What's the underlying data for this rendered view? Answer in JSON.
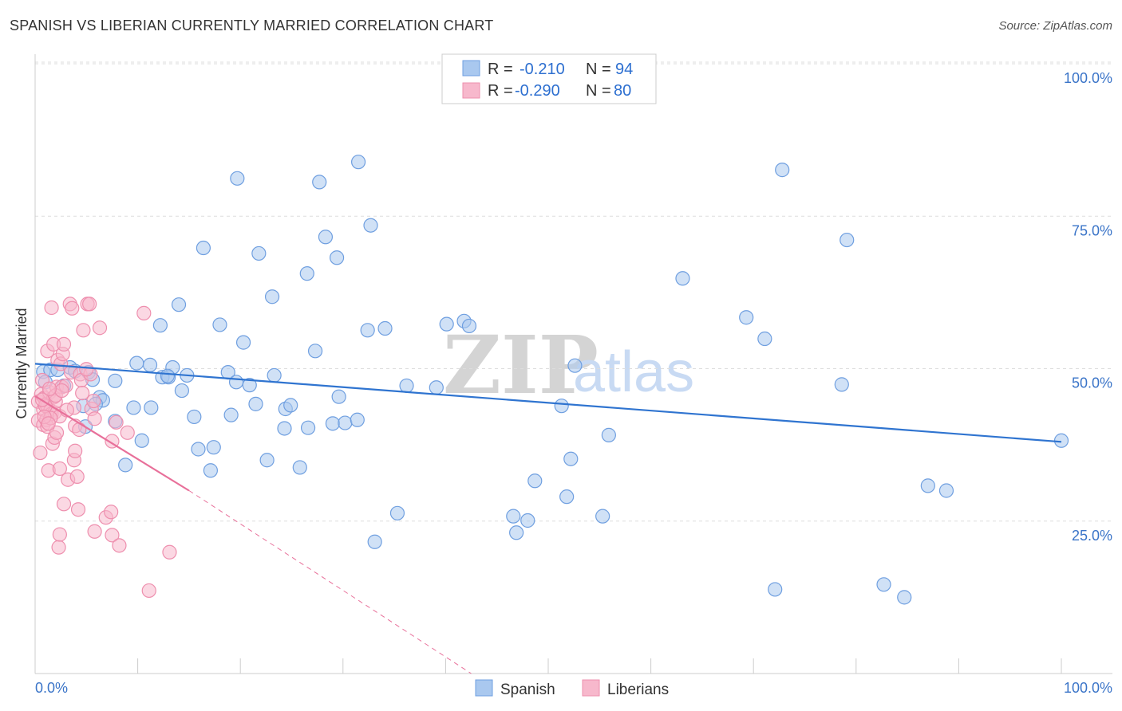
{
  "header": {
    "title": "SPANISH VS LIBERIAN CURRENTLY MARRIED CORRELATION CHART",
    "source": "Source: ZipAtlas.com"
  },
  "watermark": {
    "zip": "ZIP",
    "atlas": "atlas"
  },
  "colors": {
    "spanish_fill": "#a9c8ef",
    "spanish_stroke": "#6f9fe0",
    "spanish_line": "#2f74d0",
    "liberian_fill": "#f7b8cc",
    "liberian_stroke": "#ee8fae",
    "liberian_line": "#e8709a",
    "grid": "#dddddd",
    "tick_label": "#3a74c8"
  },
  "legend": {
    "rows": [
      {
        "r_label": "R = ",
        "r_value": "-0.210",
        "n_label": "N = ",
        "n_value": "94"
      },
      {
        "r_label": "R = ",
        "r_value": "-0.290",
        "n_label": "N = ",
        "n_value": "80"
      }
    ]
  },
  "chart_data": {
    "type": "scatter",
    "title": "SPANISH VS LIBERIAN CURRENTLY MARRIED CORRELATION CHART",
    "xlabel": "",
    "ylabel": "Currently Married",
    "xlim": [
      0,
      100
    ],
    "ylim": [
      0,
      100
    ],
    "x_tick_labels": [
      "0.0%",
      "100.0%"
    ],
    "y_ticks": [
      25,
      50,
      75,
      100
    ],
    "y_tick_labels": [
      "25.0%",
      "50.0%",
      "75.0%",
      "100.0%"
    ],
    "grid": true,
    "legend_position": "top-center",
    "series": [
      {
        "name": "Spanish",
        "r": -0.21,
        "n": 94,
        "trend": {
          "x": [
            0,
            100
          ],
          "y": [
            50.8,
            38.0
          ],
          "dashed_extension": false
        },
        "points": [
          [
            0.8,
            49.5
          ],
          [
            1.5,
            49.8
          ],
          [
            2.2,
            49.8
          ],
          [
            2.8,
            47.2
          ],
          [
            3.4,
            50.2
          ],
          [
            3.9,
            49.6
          ],
          [
            5.2,
            49.4
          ],
          [
            5.6,
            48.2
          ],
          [
            4.7,
            43.9
          ],
          [
            4.9,
            40.5
          ],
          [
            6.3,
            45.3
          ],
          [
            6.6,
            44.8
          ],
          [
            5.9,
            44.2
          ],
          [
            7.8,
            48.0
          ],
          [
            7.8,
            41.4
          ],
          [
            8.8,
            34.2
          ],
          [
            9.6,
            43.6
          ],
          [
            9.9,
            50.9
          ],
          [
            10.4,
            38.2
          ],
          [
            11.2,
            50.6
          ],
          [
            11.3,
            43.6
          ],
          [
            12.2,
            57.1
          ],
          [
            12.4,
            48.6
          ],
          [
            13.4,
            50.2
          ],
          [
            13.0,
            48.6
          ],
          [
            14.0,
            60.5
          ],
          [
            14.3,
            46.4
          ],
          [
            14.8,
            48.9
          ],
          [
            15.5,
            42.1
          ],
          [
            15.9,
            36.8
          ],
          [
            16.4,
            69.8
          ],
          [
            17.1,
            33.3
          ],
          [
            17.4,
            37.1
          ],
          [
            18.0,
            57.2
          ],
          [
            18.8,
            49.4
          ],
          [
            19.1,
            42.4
          ],
          [
            19.6,
            47.8
          ],
          [
            19.7,
            81.2
          ],
          [
            20.3,
            54.3
          ],
          [
            20.9,
            47.3
          ],
          [
            21.5,
            44.2
          ],
          [
            21.8,
            68.9
          ],
          [
            22.6,
            35.0
          ],
          [
            23.1,
            61.8
          ],
          [
            23.3,
            48.9
          ],
          [
            24.3,
            40.2
          ],
          [
            24.4,
            43.4
          ],
          [
            24.9,
            44.0
          ],
          [
            25.8,
            33.8
          ],
          [
            26.5,
            65.6
          ],
          [
            26.6,
            40.3
          ],
          [
            27.3,
            52.9
          ],
          [
            27.7,
            80.6
          ],
          [
            28.3,
            71.6
          ],
          [
            29.0,
            41.0
          ],
          [
            29.4,
            68.2
          ],
          [
            29.6,
            45.4
          ],
          [
            30.2,
            41.1
          ],
          [
            31.4,
            41.6
          ],
          [
            31.5,
            83.9
          ],
          [
            32.4,
            56.3
          ],
          [
            32.7,
            73.5
          ],
          [
            33.1,
            21.6
          ],
          [
            34.1,
            56.6
          ],
          [
            35.3,
            26.3
          ],
          [
            36.2,
            47.2
          ],
          [
            39.1,
            46.9
          ],
          [
            40.1,
            57.3
          ],
          [
            41.8,
            57.8
          ],
          [
            42.3,
            57.0
          ],
          [
            46.6,
            25.8
          ],
          [
            46.9,
            23.1
          ],
          [
            48.0,
            25.1
          ],
          [
            48.7,
            31.6
          ],
          [
            51.3,
            43.9
          ],
          [
            51.8,
            29.0
          ],
          [
            52.2,
            35.2
          ],
          [
            52.6,
            50.5
          ],
          [
            55.3,
            25.8
          ],
          [
            55.9,
            39.1
          ],
          [
            63.1,
            64.8
          ],
          [
            69.3,
            58.4
          ],
          [
            71.1,
            54.9
          ],
          [
            72.1,
            13.8
          ],
          [
            72.8,
            82.6
          ],
          [
            78.6,
            47.4
          ],
          [
            79.1,
            71.1
          ],
          [
            82.7,
            14.6
          ],
          [
            84.7,
            12.5
          ],
          [
            87.0,
            30.8
          ],
          [
            88.8,
            30.0
          ],
          [
            100.0,
            38.2
          ],
          [
            1.0,
            47.8
          ],
          [
            12.9,
            48.8
          ]
        ]
      },
      {
        "name": "Liberians",
        "r": -0.29,
        "n": 80,
        "trend": {
          "x": [
            0,
            15
          ],
          "y": [
            45.5,
            30.0
          ],
          "dashed_to": [
            42.5,
            0
          ]
        },
        "points": [
          [
            0.3,
            44.6
          ],
          [
            0.3,
            41.5
          ],
          [
            0.5,
            36.2
          ],
          [
            0.6,
            45.8
          ],
          [
            0.7,
            48.1
          ],
          [
            0.8,
            43.3
          ],
          [
            0.8,
            40.8
          ],
          [
            0.9,
            45.2
          ],
          [
            1.1,
            44.2
          ],
          [
            1.1,
            41.6
          ],
          [
            1.2,
            43.8
          ],
          [
            1.2,
            52.9
          ],
          [
            1.2,
            40.5
          ],
          [
            1.3,
            33.3
          ],
          [
            1.4,
            46.1
          ],
          [
            1.5,
            43.1
          ],
          [
            1.6,
            60.0
          ],
          [
            1.6,
            42.6
          ],
          [
            1.7,
            37.7
          ],
          [
            1.8,
            54.0
          ],
          [
            1.8,
            45.3
          ],
          [
            1.9,
            42.8
          ],
          [
            1.9,
            38.7
          ],
          [
            2.0,
            44.6
          ],
          [
            2.1,
            47.0
          ],
          [
            2.1,
            39.5
          ],
          [
            2.2,
            51.4
          ],
          [
            2.3,
            20.7
          ],
          [
            2.4,
            42.2
          ],
          [
            2.4,
            33.6
          ],
          [
            2.4,
            22.8
          ],
          [
            2.5,
            50.8
          ],
          [
            2.6,
            47.0
          ],
          [
            2.7,
            52.4
          ],
          [
            2.8,
            27.8
          ],
          [
            2.8,
            54.0
          ],
          [
            3.0,
            47.2
          ],
          [
            3.2,
            31.8
          ],
          [
            3.4,
            60.6
          ],
          [
            3.5,
            49.4
          ],
          [
            3.6,
            59.9
          ],
          [
            3.8,
            43.6
          ],
          [
            3.8,
            35.0
          ],
          [
            3.9,
            40.6
          ],
          [
            4.1,
            32.3
          ],
          [
            4.2,
            26.9
          ],
          [
            4.3,
            40.0
          ],
          [
            4.4,
            49.1
          ],
          [
            4.5,
            48.1
          ],
          [
            4.6,
            46.0
          ],
          [
            4.7,
            56.3
          ],
          [
            5.1,
            60.6
          ],
          [
            5.3,
            60.6
          ],
          [
            5.4,
            49.1
          ],
          [
            5.5,
            43.4
          ],
          [
            5.7,
            44.7
          ],
          [
            5.8,
            41.8
          ],
          [
            5.8,
            23.3
          ],
          [
            6.3,
            56.7
          ],
          [
            6.9,
            25.6
          ],
          [
            7.4,
            26.5
          ],
          [
            7.5,
            38.1
          ],
          [
            7.5,
            22.7
          ],
          [
            7.9,
            41.2
          ],
          [
            8.2,
            21.0
          ],
          [
            9.0,
            39.5
          ],
          [
            10.6,
            59.1
          ],
          [
            11.1,
            13.6
          ],
          [
            13.1,
            19.9
          ],
          [
            3.9,
            36.5
          ],
          [
            1.0,
            43.9
          ],
          [
            1.5,
            41.9
          ],
          [
            2.0,
            45.6
          ],
          [
            0.9,
            42.1
          ],
          [
            1.3,
            41.0
          ],
          [
            2.6,
            46.4
          ],
          [
            0.7,
            44.9
          ],
          [
            3.1,
            43.2
          ],
          [
            1.4,
            46.7
          ],
          [
            5.0,
            49.9
          ]
        ]
      }
    ]
  },
  "bottom_legend": {
    "items": [
      "Spanish",
      "Liberians"
    ]
  }
}
